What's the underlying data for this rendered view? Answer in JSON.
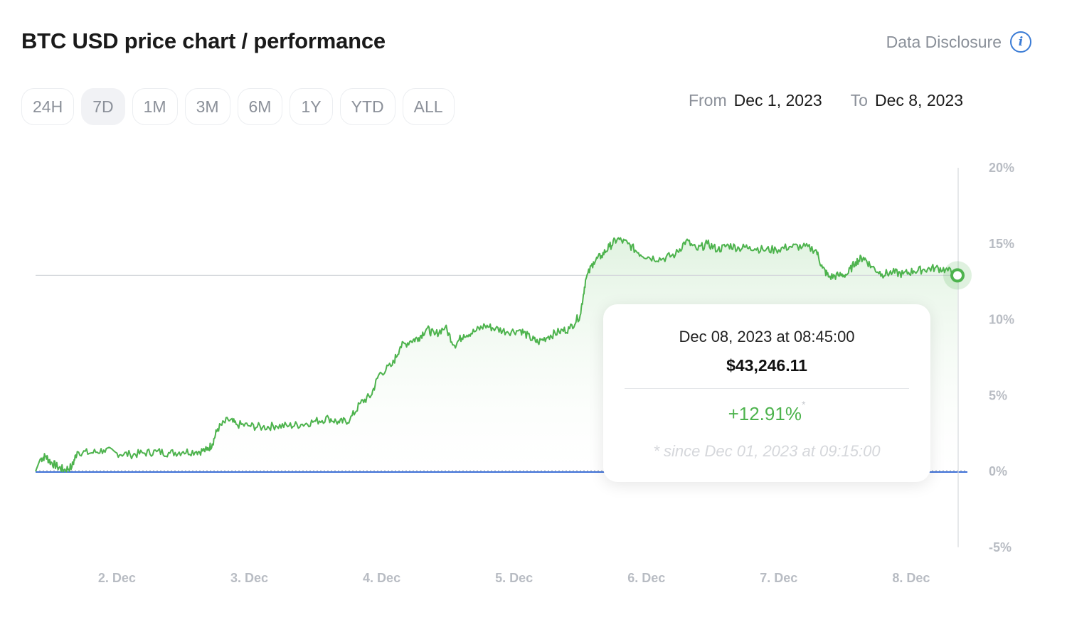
{
  "header": {
    "title": "BTC USD price chart / performance",
    "disclosure_label": "Data Disclosure",
    "info_icon": "info-icon"
  },
  "ranges": [
    {
      "label": "24H",
      "active": false
    },
    {
      "label": "7D",
      "active": true
    },
    {
      "label": "1M",
      "active": false
    },
    {
      "label": "3M",
      "active": false
    },
    {
      "label": "6M",
      "active": false
    },
    {
      "label": "1Y",
      "active": false
    },
    {
      "label": "YTD",
      "active": false
    },
    {
      "label": "ALL",
      "active": false
    }
  ],
  "date_range": {
    "from_label": "From",
    "from_value": "Dec 1, 2023",
    "to_label": "To",
    "to_value": "Dec 8, 2023"
  },
  "tooltip": {
    "date": "Dec 08, 2023 at 08:45:00",
    "price": "$43,246.11",
    "change": "+12.91%",
    "change_marker": "*",
    "note": "* since Dec 01, 2023 at 09:15:00"
  },
  "colors": {
    "line": "#4db34d",
    "fill": "#e9f6e9",
    "baseline": "#3d6fd6",
    "crosshair": "#d5d8dc"
  },
  "chart_data": {
    "type": "area",
    "title": "",
    "xlabel": "",
    "ylabel": "",
    "x_tick_labels": [
      "2. Dec",
      "3. Dec",
      "4. Dec",
      "5. Dec",
      "6. Dec",
      "7. Dec",
      "8. Dec"
    ],
    "y_tick_labels": [
      "20%",
      "15%",
      "10%",
      "5%",
      "0%",
      "-5%"
    ],
    "y_ticks": [
      20,
      15,
      10,
      5,
      0,
      -5
    ],
    "ylim": [
      -5,
      20
    ],
    "x_unit": "days since Dec 1, 2023 00:00",
    "xlim": [
      1.385,
      8.35
    ],
    "grid": false,
    "baseline_value": 0,
    "highlight": {
      "x": 8.365,
      "y": 12.91
    },
    "series": [
      {
        "values": [
          [
            1.385,
            0.0
          ],
          [
            1.42,
            0.8
          ],
          [
            1.46,
            1.0
          ],
          [
            1.5,
            0.6
          ],
          [
            1.55,
            0.3
          ],
          [
            1.6,
            0.1
          ],
          [
            1.66,
            0.3
          ],
          [
            1.7,
            1.3
          ],
          [
            1.8,
            1.2
          ],
          [
            1.9,
            1.4
          ],
          [
            2.0,
            1.2
          ],
          [
            2.1,
            1.1
          ],
          [
            2.2,
            1.2
          ],
          [
            2.3,
            1.3
          ],
          [
            2.4,
            1.2
          ],
          [
            2.5,
            1.3
          ],
          [
            2.6,
            1.3
          ],
          [
            2.68,
            1.4
          ],
          [
            2.72,
            1.8
          ],
          [
            2.76,
            2.8
          ],
          [
            2.84,
            3.4
          ],
          [
            2.9,
            3.1
          ],
          [
            3.0,
            3.0
          ],
          [
            3.1,
            2.9
          ],
          [
            3.2,
            3.0
          ],
          [
            3.3,
            3.0
          ],
          [
            3.4,
            3.1
          ],
          [
            3.5,
            3.3
          ],
          [
            3.6,
            3.5
          ],
          [
            3.68,
            3.2
          ],
          [
            3.76,
            3.4
          ],
          [
            3.84,
            4.5
          ],
          [
            3.92,
            5.0
          ],
          [
            3.98,
            6.4
          ],
          [
            4.08,
            7.0
          ],
          [
            4.14,
            8.2
          ],
          [
            4.22,
            8.6
          ],
          [
            4.28,
            8.8
          ],
          [
            4.34,
            9.4
          ],
          [
            4.4,
            9.0
          ],
          [
            4.48,
            9.5
          ],
          [
            4.55,
            8.3
          ],
          [
            4.62,
            9.0
          ],
          [
            4.7,
            9.2
          ],
          [
            4.78,
            9.6
          ],
          [
            4.86,
            9.4
          ],
          [
            4.95,
            9.2
          ],
          [
            5.05,
            9.3
          ],
          [
            5.12,
            8.8
          ],
          [
            5.18,
            8.5
          ],
          [
            5.26,
            8.9
          ],
          [
            5.34,
            9.2
          ],
          [
            5.42,
            9.4
          ],
          [
            5.5,
            10.3
          ],
          [
            5.54,
            12.6
          ],
          [
            5.6,
            13.8
          ],
          [
            5.66,
            14.2
          ],
          [
            5.72,
            14.8
          ],
          [
            5.78,
            15.3
          ],
          [
            5.86,
            15.0
          ],
          [
            5.94,
            14.4
          ],
          [
            6.02,
            14.1
          ],
          [
            6.12,
            14.0
          ],
          [
            6.22,
            14.3
          ],
          [
            6.3,
            15.2
          ],
          [
            6.38,
            14.6
          ],
          [
            6.46,
            15.0
          ],
          [
            6.54,
            14.6
          ],
          [
            6.62,
            14.9
          ],
          [
            6.7,
            14.7
          ],
          [
            6.78,
            14.8
          ],
          [
            6.88,
            14.6
          ],
          [
            6.98,
            14.6
          ],
          [
            7.08,
            14.8
          ],
          [
            7.18,
            14.8
          ],
          [
            7.28,
            14.6
          ],
          [
            7.33,
            13.4
          ],
          [
            7.38,
            12.8
          ],
          [
            7.45,
            12.9
          ],
          [
            7.52,
            13.0
          ],
          [
            7.58,
            13.8
          ],
          [
            7.64,
            14.1
          ],
          [
            7.7,
            13.5
          ],
          [
            7.78,
            13.0
          ],
          [
            7.86,
            13.1
          ],
          [
            7.94,
            13.0
          ],
          [
            8.02,
            13.2
          ],
          [
            8.1,
            13.3
          ],
          [
            8.18,
            13.4
          ],
          [
            8.26,
            13.3
          ],
          [
            8.35,
            12.91
          ]
        ]
      }
    ]
  }
}
